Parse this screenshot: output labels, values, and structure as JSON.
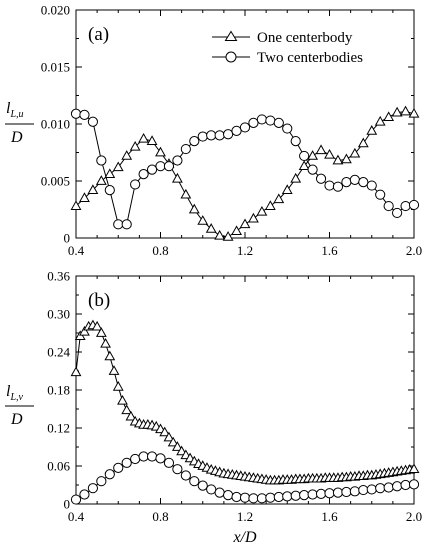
{
  "chart_data": [
    {
      "type": "line",
      "panel_label": "(a)",
      "ylabel_main": "l",
      "ylabel_sub": "L,u",
      "ylabel_den": "D",
      "xlabel": "",
      "xlim": [
        0.4,
        2.0
      ],
      "ylim": [
        0,
        0.02
      ],
      "xticks": [
        0.4,
        0.8,
        1.2,
        1.6,
        2.0
      ],
      "xtick_labels": [
        "0.4",
        "0.8",
        "1.2",
        "1.6",
        "2.0"
      ],
      "yticks": [
        0,
        0.005,
        0.01,
        0.015,
        0.02
      ],
      "ytick_labels": [
        "0",
        "0.005",
        "0.010",
        "0.015",
        "0.020"
      ],
      "legend_position": "top-right",
      "series": [
        {
          "name": "One centerbody",
          "marker": "triangle",
          "x": [
            0.4,
            0.44,
            0.48,
            0.52,
            0.56,
            0.6,
            0.64,
            0.68,
            0.72,
            0.76,
            0.8,
            0.84,
            0.88,
            0.92,
            0.96,
            1.0,
            1.04,
            1.08,
            1.12,
            1.16,
            1.2,
            1.24,
            1.28,
            1.32,
            1.36,
            1.4,
            1.44,
            1.48,
            1.52,
            1.56,
            1.6,
            1.64,
            1.68,
            1.72,
            1.76,
            1.8,
            1.84,
            1.88,
            1.92,
            1.96,
            2.0
          ],
          "y": [
            0.0028,
            0.0035,
            0.0042,
            0.005,
            0.0056,
            0.0062,
            0.0072,
            0.008,
            0.0087,
            0.0085,
            0.0075,
            0.0065,
            0.0052,
            0.0038,
            0.0025,
            0.0015,
            0.0008,
            0.0002,
            0.0001,
            0.0006,
            0.0012,
            0.0017,
            0.0023,
            0.0028,
            0.0034,
            0.0042,
            0.0052,
            0.0063,
            0.0072,
            0.0077,
            0.0073,
            0.0068,
            0.0069,
            0.0074,
            0.0083,
            0.0094,
            0.0102,
            0.0106,
            0.011,
            0.0111,
            0.0109
          ]
        },
        {
          "name": "Two centerbodies",
          "marker": "circle",
          "x": [
            0.4,
            0.44,
            0.48,
            0.52,
            0.56,
            0.6,
            0.64,
            0.68,
            0.72,
            0.76,
            0.8,
            0.84,
            0.88,
            0.92,
            0.96,
            1.0,
            1.04,
            1.08,
            1.12,
            1.16,
            1.2,
            1.24,
            1.28,
            1.32,
            1.36,
            1.4,
            1.44,
            1.48,
            1.52,
            1.56,
            1.6,
            1.64,
            1.68,
            1.72,
            1.76,
            1.8,
            1.84,
            1.88,
            1.92,
            1.96,
            2.0
          ],
          "y": [
            0.0109,
            0.0108,
            0.0102,
            0.0068,
            0.0042,
            0.0012,
            0.0012,
            0.0047,
            0.0056,
            0.006,
            0.0063,
            0.0063,
            0.0068,
            0.0078,
            0.0085,
            0.0089,
            0.009,
            0.009,
            0.0091,
            0.0094,
            0.0097,
            0.0101,
            0.0104,
            0.0103,
            0.0101,
            0.0096,
            0.0085,
            0.0072,
            0.006,
            0.0052,
            0.0046,
            0.0045,
            0.0049,
            0.0051,
            0.0049,
            0.0046,
            0.0038,
            0.0028,
            0.0022,
            0.0028,
            0.0029
          ]
        }
      ]
    },
    {
      "type": "line",
      "panel_label": "(b)",
      "ylabel_main": "l",
      "ylabel_sub": "L,v",
      "ylabel_den": "D",
      "xlabel": "x/D",
      "xlim": [
        0.4,
        2.0
      ],
      "ylim": [
        0,
        0.36
      ],
      "xticks": [
        0.4,
        0.8,
        1.2,
        1.6,
        2.0
      ],
      "xtick_labels": [
        "0.4",
        "0.8",
        "1.2",
        "1.6",
        "2.0"
      ],
      "yticks": [
        0,
        0.06,
        0.12,
        0.18,
        0.24,
        0.3,
        0.36
      ],
      "ytick_labels": [
        "0",
        "0.06",
        "0.12",
        "0.18",
        "0.24",
        "0.30",
        "0.36"
      ],
      "series": [
        {
          "name": "One centerbody",
          "marker": "triangle",
          "x": [
            0.4,
            0.42,
            0.44,
            0.46,
            0.48,
            0.5,
            0.52,
            0.54,
            0.56,
            0.58,
            0.6,
            0.62,
            0.64,
            0.66,
            0.68,
            0.7,
            0.72,
            0.74,
            0.76,
            0.78,
            0.8,
            0.82,
            0.84,
            0.86,
            0.88,
            0.9,
            0.92,
            0.94,
            0.96,
            0.98,
            1.0,
            1.02,
            1.04,
            1.06,
            1.08,
            1.1,
            1.12,
            1.14,
            1.16,
            1.18,
            1.2,
            1.22,
            1.24,
            1.26,
            1.28,
            1.3,
            1.32,
            1.34,
            1.36,
            1.38,
            1.4,
            1.42,
            1.44,
            1.46,
            1.48,
            1.5,
            1.52,
            1.54,
            1.56,
            1.58,
            1.6,
            1.62,
            1.64,
            1.66,
            1.68,
            1.7,
            1.72,
            1.74,
            1.76,
            1.78,
            1.8,
            1.82,
            1.84,
            1.86,
            1.88,
            1.9,
            1.92,
            1.94,
            1.96,
            1.98,
            2.0
          ],
          "y": [
            0.208,
            0.265,
            0.272,
            0.28,
            0.282,
            0.28,
            0.27,
            0.253,
            0.233,
            0.21,
            0.185,
            0.163,
            0.148,
            0.138,
            0.13,
            0.127,
            0.125,
            0.125,
            0.124,
            0.122,
            0.118,
            0.113,
            0.105,
            0.097,
            0.09,
            0.083,
            0.077,
            0.072,
            0.067,
            0.063,
            0.06,
            0.057,
            0.054,
            0.052,
            0.05,
            0.048,
            0.047,
            0.046,
            0.045,
            0.044,
            0.043,
            0.042,
            0.041,
            0.04,
            0.039,
            0.038,
            0.037,
            0.037,
            0.037,
            0.038,
            0.038,
            0.038,
            0.039,
            0.039,
            0.039,
            0.04,
            0.04,
            0.04,
            0.04,
            0.041,
            0.041,
            0.041,
            0.041,
            0.042,
            0.042,
            0.043,
            0.043,
            0.044,
            0.044,
            0.045,
            0.045,
            0.046,
            0.047,
            0.048,
            0.049,
            0.05,
            0.051,
            0.052,
            0.053,
            0.054,
            0.055
          ]
        },
        {
          "name": "Two centerbodies",
          "marker": "circle",
          "x": [
            0.4,
            0.44,
            0.48,
            0.52,
            0.56,
            0.6,
            0.64,
            0.68,
            0.72,
            0.76,
            0.8,
            0.84,
            0.88,
            0.92,
            0.96,
            1.0,
            1.04,
            1.08,
            1.12,
            1.16,
            1.2,
            1.24,
            1.28,
            1.32,
            1.36,
            1.4,
            1.44,
            1.48,
            1.52,
            1.56,
            1.6,
            1.64,
            1.68,
            1.72,
            1.76,
            1.8,
            1.84,
            1.88,
            1.92,
            1.96,
            2.0
          ],
          "y": [
            0.007,
            0.015,
            0.025,
            0.036,
            0.047,
            0.057,
            0.065,
            0.071,
            0.075,
            0.075,
            0.072,
            0.065,
            0.055,
            0.045,
            0.036,
            0.029,
            0.023,
            0.018,
            0.014,
            0.011,
            0.01,
            0.009,
            0.009,
            0.01,
            0.011,
            0.012,
            0.013,
            0.014,
            0.015,
            0.016,
            0.017,
            0.018,
            0.019,
            0.02,
            0.022,
            0.023,
            0.025,
            0.026,
            0.028,
            0.03,
            0.031
          ]
        }
      ]
    }
  ]
}
